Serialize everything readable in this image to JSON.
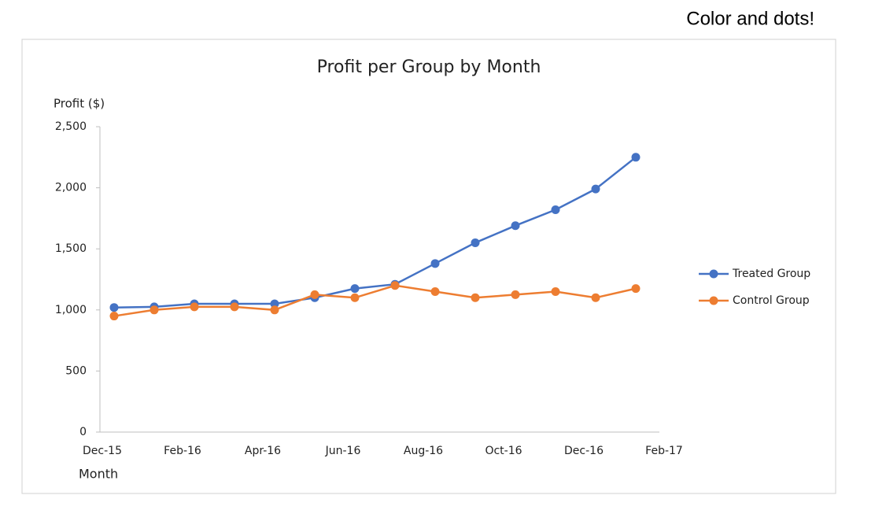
{
  "note_text": "Color and dots!",
  "chart_data": {
    "type": "line",
    "title": "Profit per Group by Month",
    "y_label": "Profit ($)",
    "x_label": "Month",
    "categories": [
      "Dec-15",
      null,
      "Feb-16",
      null,
      "Apr-16",
      null,
      "Jun-16",
      null,
      "Aug-16",
      null,
      "Oct-16",
      null,
      "Dec-16",
      null,
      "Feb-17"
    ],
    "series": [
      {
        "name": "Treated Group",
        "color": "#4472c4",
        "values": [
          1020,
          1025,
          1050,
          1050,
          1050,
          1100,
          1175,
          1210,
          1380,
          1550,
          1690,
          1820,
          1990,
          2250,
          null
        ]
      },
      {
        "name": "Control Group",
        "color": "#ed7d31",
        "values": [
          950,
          1000,
          1025,
          1025,
          1000,
          1125,
          1100,
          1200,
          1150,
          1100,
          1125,
          1150,
          1100,
          1175,
          null
        ]
      }
    ],
    "ylim": [
      0,
      2500
    ],
    "yticks": [
      0,
      500,
      {
        "value": 1000,
        "label": "1,000"
      },
      {
        "value": 1500,
        "label": "1,500"
      },
      {
        "value": 2000,
        "label": "2,000"
      },
      {
        "value": 2500,
        "label": "2,500"
      }
    ],
    "legend": "right"
  }
}
